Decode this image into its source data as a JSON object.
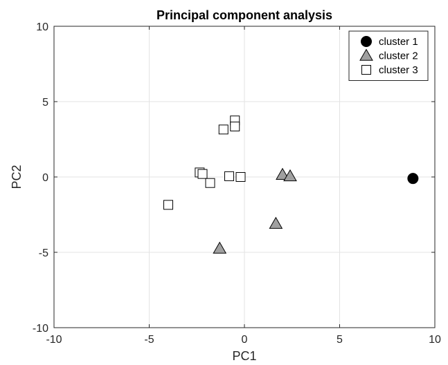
{
  "chart_data": {
    "type": "scatter",
    "title": "Principal component analysis",
    "xlabel": "PC1",
    "ylabel": "PC2",
    "xlim": [
      -10,
      10
    ],
    "ylim": [
      -10,
      10
    ],
    "xticks": [
      -10,
      -5,
      0,
      5,
      10
    ],
    "yticks": [
      -10,
      -5,
      0,
      5,
      10
    ],
    "xtick_labels": [
      "-10",
      "-5",
      "0",
      "5",
      "10"
    ],
    "ytick_labels": [
      "-10",
      "-5",
      "0",
      "5",
      "10"
    ],
    "grid": true,
    "legend_position": "top-right",
    "series": [
      {
        "name": "cluster 1",
        "marker": "circle",
        "color": "#000000",
        "points": [
          [
            8.85,
            -0.1
          ]
        ]
      },
      {
        "name": "cluster 2",
        "marker": "triangle",
        "color": "#a0a0a0",
        "points": [
          [
            2.0,
            0.15
          ],
          [
            2.4,
            0.05
          ],
          [
            1.65,
            -3.1
          ],
          [
            -1.3,
            -4.75
          ]
        ]
      },
      {
        "name": "cluster 3",
        "marker": "square",
        "color": "#ffffff",
        "points": [
          [
            -0.5,
            3.75
          ],
          [
            -0.5,
            3.35
          ],
          [
            -1.1,
            3.15
          ],
          [
            -2.35,
            0.3
          ],
          [
            -2.2,
            0.2
          ],
          [
            -1.8,
            -0.4
          ],
          [
            -0.8,
            0.05
          ],
          [
            -0.2,
            0.0
          ],
          [
            -4.0,
            -1.85
          ]
        ]
      }
    ]
  }
}
